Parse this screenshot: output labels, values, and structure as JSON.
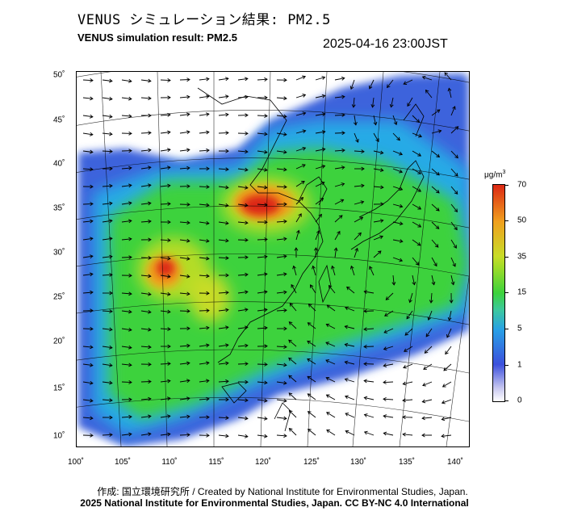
{
  "header": {
    "title_jp": "VENUS シミュレーション結果: PM2.5",
    "title_en": "VENUS simulation result: PM2.5",
    "timestamp": "2025-04-16 23:00JST"
  },
  "map": {
    "lon_ticks": [
      "100˚",
      "105˚",
      "110˚",
      "115˚",
      "120˚",
      "125˚",
      "130˚",
      "135˚",
      "140˚"
    ],
    "lat_ticks": [
      "50˚",
      "45˚",
      "40˚",
      "35˚",
      "30˚",
      "25˚",
      "20˚",
      "15˚",
      "10˚"
    ],
    "lon_range": [
      100,
      142
    ],
    "lat_range": [
      9,
      51
    ]
  },
  "colorbar": {
    "unit": "μg/m",
    "unit_sup": "3",
    "labels": [
      "70",
      "50",
      "35",
      "15",
      "5",
      "1",
      "0"
    ],
    "colors": {
      "c0": "#ffffff",
      "c1": "#3c50dc",
      "c5": "#28a0e6",
      "c15": "#3cd23c",
      "c35": "#c8dc28",
      "c50": "#f0a01e",
      "c70": "#dc2814"
    }
  },
  "footer": {
    "credit_jp_en": "作成: 国立環境研究所 / Created by National Institute for Environmental Studies, Japan.",
    "copyright": "2025 National Institute for Environmental Studies, Japan. CC BY-NC 4.0 International"
  }
}
